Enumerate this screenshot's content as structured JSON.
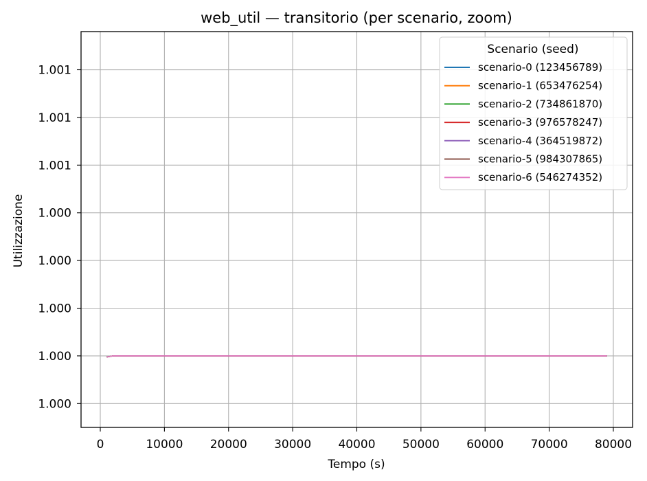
{
  "chart_data": {
    "type": "line",
    "title": "web_util — transitorio (per scenario, zoom)",
    "xlabel": "Tempo (s)",
    "ylabel": "Utilizzazione",
    "xlim": [
      -3000,
      83000
    ],
    "ylim": [
      0.9997,
      1.00136
    ],
    "x_ticks": [
      0,
      10000,
      20000,
      30000,
      40000,
      50000,
      60000,
      70000,
      80000
    ],
    "x_tick_labels": [
      "0",
      "10000",
      "20000",
      "30000",
      "40000",
      "50000",
      "60000",
      "70000",
      "80000"
    ],
    "y_ticks": [
      0.9998,
      1.0,
      1.0002,
      1.0004,
      1.0006,
      1.0008,
      1.001,
      1.0012
    ],
    "y_tick_labels": [
      "1.000",
      "1.000",
      "1.000",
      "1.000",
      "1.000",
      "1.001",
      "1.001",
      "1.001"
    ],
    "grid": true,
    "legend": {
      "title": "Scenario (seed)",
      "position": "top-right"
    },
    "series": [
      {
        "name": "scenario-0 (123456789)",
        "color": "#1f77b4",
        "x": [
          1000,
          2000,
          79000
        ],
        "y": [
          0.999995,
          1.0,
          1.0
        ]
      },
      {
        "name": "scenario-1 (653476254)",
        "color": "#ff7f0e",
        "x": [
          1000,
          2000,
          79000
        ],
        "y": [
          0.999995,
          1.0,
          1.0
        ]
      },
      {
        "name": "scenario-2 (734861870)",
        "color": "#2ca02c",
        "x": [
          1000,
          2000,
          79000
        ],
        "y": [
          0.999995,
          1.0,
          1.0
        ]
      },
      {
        "name": "scenario-3 (976578247)",
        "color": "#d62728",
        "x": [
          1000,
          2000,
          79000
        ],
        "y": [
          0.999995,
          1.0,
          1.0
        ]
      },
      {
        "name": "scenario-4 (364519872)",
        "color": "#9467bd",
        "x": [
          1000,
          2000,
          79000
        ],
        "y": [
          0.999995,
          1.0,
          1.0
        ]
      },
      {
        "name": "scenario-5 (984307865)",
        "color": "#8c564b",
        "x": [
          1000,
          2000,
          79000
        ],
        "y": [
          0.999995,
          1.0,
          1.0
        ]
      },
      {
        "name": "scenario-6 (546274352)",
        "color": "#e377c2",
        "x": [
          1000,
          2000,
          79000
        ],
        "y": [
          0.999995,
          1.0,
          1.0
        ]
      }
    ]
  }
}
